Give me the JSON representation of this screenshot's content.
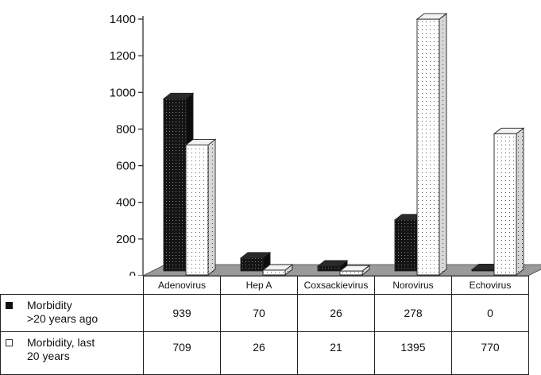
{
  "chart_data": {
    "type": "bar",
    "categories": [
      "Adenovirus",
      "Hep A",
      "Coxsackievirus",
      "Norovirus",
      "Echovirus"
    ],
    "series": [
      {
        "name": "Morbidity >20 years ago",
        "values": [
          939,
          70,
          26,
          278,
          0
        ],
        "color": "#1a1a1a",
        "pattern": "dark-dotted"
      },
      {
        "name": "Morbidity, last 20 years",
        "values": [
          709,
          26,
          21,
          1395,
          770
        ],
        "color": "#ffffff",
        "pattern": "light-dotted"
      }
    ],
    "yticks": [
      0,
      200,
      400,
      600,
      800,
      1000,
      1200,
      1400
    ],
    "ylim": [
      0,
      1400
    ],
    "grid": false,
    "legend": "data-table-left",
    "table": {
      "row_labels": [
        "Morbidity >20 years ago",
        "Morbidity, last 20 years"
      ],
      "row_label_lines": [
        [
          "Morbidity",
          ">20 years ago"
        ],
        [
          "Morbidity, last",
          "20 years"
        ]
      ],
      "rows": [
        [
          "939",
          "70",
          "26",
          "278",
          "0"
        ],
        [
          "709",
          "26",
          "21",
          "1395",
          "770"
        ]
      ]
    }
  }
}
